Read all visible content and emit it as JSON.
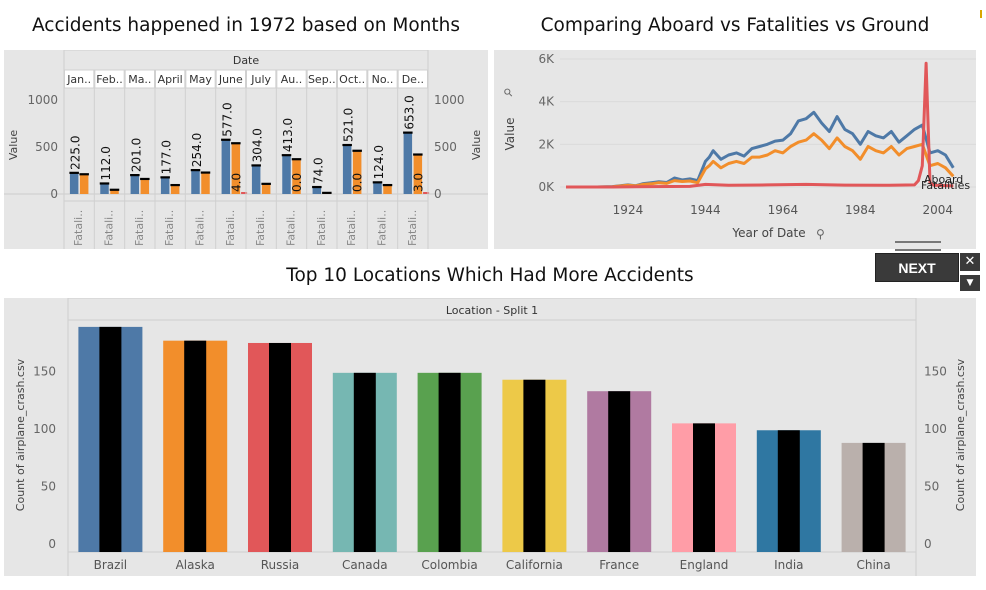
{
  "dashboard": {
    "next_label": "NEXT",
    "close_glyph": "✕",
    "chevron_glyph": "▼"
  },
  "chart_data": [
    {
      "type": "bar",
      "title": "Accidents happened in 1972 based on Months",
      "column_header": "Date",
      "categories": [
        "Jan..",
        "Feb..",
        "Ma..",
        "April",
        "May",
        "June",
        "July",
        "Au..",
        "Sep..",
        "Oct..",
        "No..",
        "De.."
      ],
      "row_label": "Fatali..",
      "ylabel": "Value",
      "ylim": [
        0,
        1000
      ],
      "yticks": [
        0,
        500,
        1000
      ],
      "series": [
        {
          "values": [
            225,
            112,
            201,
            177,
            254,
            577,
            304,
            413,
            74,
            521,
            124,
            653
          ],
          "color": "#4e79a7",
          "labels": [
            "225.0",
            "112.0",
            "201.0",
            "177.0",
            "254.0",
            "577.0",
            "304.0",
            "413.0",
            "74.0",
            "521.0",
            "124.0",
            "653.0"
          ]
        },
        {
          "values": [
            210,
            45,
            160,
            95,
            228,
            540,
            108,
            370,
            12,
            460,
            95,
            420
          ],
          "color": "#f28e2b"
        },
        {
          "values": [
            0,
            0,
            0,
            0,
            0,
            4,
            0,
            0,
            0,
            0,
            0,
            3
          ],
          "color": "#e15759",
          "labels": [
            "",
            "",
            "",
            "",
            "",
            "4.0",
            "",
            "0.0",
            "",
            "0.0",
            "",
            "3.0"
          ]
        }
      ]
    },
    {
      "type": "line",
      "title": "Comparing Aboard vs Fatalities vs Ground",
      "xlabel": "Year of Date",
      "ylabel": "Value",
      "xlim": [
        1908,
        2010
      ],
      "xticks": [
        1924,
        1944,
        1964,
        1984,
        2004
      ],
      "ylim": [
        -300,
        6000
      ],
      "yticks": [
        0,
        2000,
        4000,
        6000
      ],
      "ytick_labels": [
        "0K",
        "2K",
        "4K",
        "6K"
      ],
      "series": [
        {
          "name": "Aboard",
          "color": "#4e79a7",
          "x": [
            1908,
            1912,
            1916,
            1920,
            1924,
            1926,
            1928,
            1930,
            1932,
            1934,
            1936,
            1938,
            1940,
            1942,
            1944,
            1945,
            1946,
            1948,
            1950,
            1952,
            1954,
            1956,
            1958,
            1960,
            1962,
            1964,
            1966,
            1968,
            1970,
            1972,
            1974,
            1976,
            1978,
            1980,
            1982,
            1984,
            1986,
            1988,
            1990,
            1992,
            1994,
            1996,
            1998,
            2000,
            2002,
            2004,
            2006,
            2008
          ],
          "y": [
            0,
            0,
            0,
            20,
            100,
            60,
            160,
            200,
            250,
            210,
            420,
            330,
            380,
            300,
            1200,
            1400,
            1700,
            1300,
            1500,
            1600,
            1450,
            1800,
            1900,
            2000,
            2150,
            2200,
            2500,
            3100,
            3200,
            3500,
            3000,
            2600,
            3300,
            2700,
            2500,
            2000,
            2600,
            2400,
            2300,
            2600,
            2100,
            2400,
            2700,
            2900,
            1600,
            1700,
            1500,
            900
          ]
        },
        {
          "name": "Fatalities",
          "color": "#f28e2b",
          "x": [
            1908,
            1912,
            1916,
            1920,
            1924,
            1926,
            1928,
            1930,
            1932,
            1934,
            1936,
            1938,
            1940,
            1942,
            1944,
            1945,
            1946,
            1948,
            1950,
            1952,
            1954,
            1956,
            1958,
            1960,
            1962,
            1964,
            1966,
            1968,
            1970,
            1972,
            1974,
            1976,
            1978,
            1980,
            1982,
            1984,
            1986,
            1988,
            1990,
            1992,
            1994,
            1996,
            1998,
            2000,
            2002,
            2004,
            2006,
            2008
          ],
          "y": [
            0,
            0,
            0,
            15,
            80,
            50,
            120,
            150,
            200,
            170,
            300,
            260,
            280,
            200,
            850,
            1000,
            1200,
            900,
            1100,
            1200,
            1100,
            1400,
            1400,
            1500,
            1700,
            1600,
            1900,
            2100,
            2200,
            2500,
            2200,
            1800,
            2300,
            1900,
            1700,
            1300,
            1900,
            1700,
            1600,
            1900,
            1500,
            1800,
            1900,
            2000,
            1000,
            1100,
            900,
            500
          ]
        },
        {
          "name": "Ground",
          "color": "#e15759",
          "x": [
            1908,
            1920,
            1930,
            1940,
            1944,
            1950,
            1960,
            1970,
            1980,
            1990,
            1998,
            1999,
            2000,
            2001,
            2002,
            2003,
            2008
          ],
          "y": [
            0,
            0,
            20,
            30,
            120,
            80,
            100,
            120,
            90,
            80,
            100,
            300,
            1000,
            5800,
            200,
            80,
            50
          ]
        }
      ],
      "legend": {
        "placement": "right-end",
        "entries": [
          "Aboard",
          "Fatalities"
        ]
      }
    },
    {
      "type": "bar",
      "title": "Top 10 Locations Which Had More Accidents",
      "column_header": "Location - Split 1",
      "ylabel": "Count of airplane_crash.csv",
      "categories": [
        "Brazil",
        "Alaska",
        "Russia",
        "Canada",
        "Colombia",
        "California",
        "France",
        "England",
        "India",
        "China"
      ],
      "values": [
        189,
        177,
        175,
        149,
        149,
        143,
        133,
        105,
        99,
        88
      ],
      "colors": [
        "#4e79a7",
        "#f28e2b",
        "#e15759",
        "#76b7b2",
        "#59a14f",
        "#edc948",
        "#b07aa1",
        "#ff9da7",
        "#2f77a2",
        "#bab0ac"
      ],
      "ylim": [
        -7,
        195
      ],
      "yticks": [
        0,
        50,
        100,
        150
      ]
    }
  ]
}
